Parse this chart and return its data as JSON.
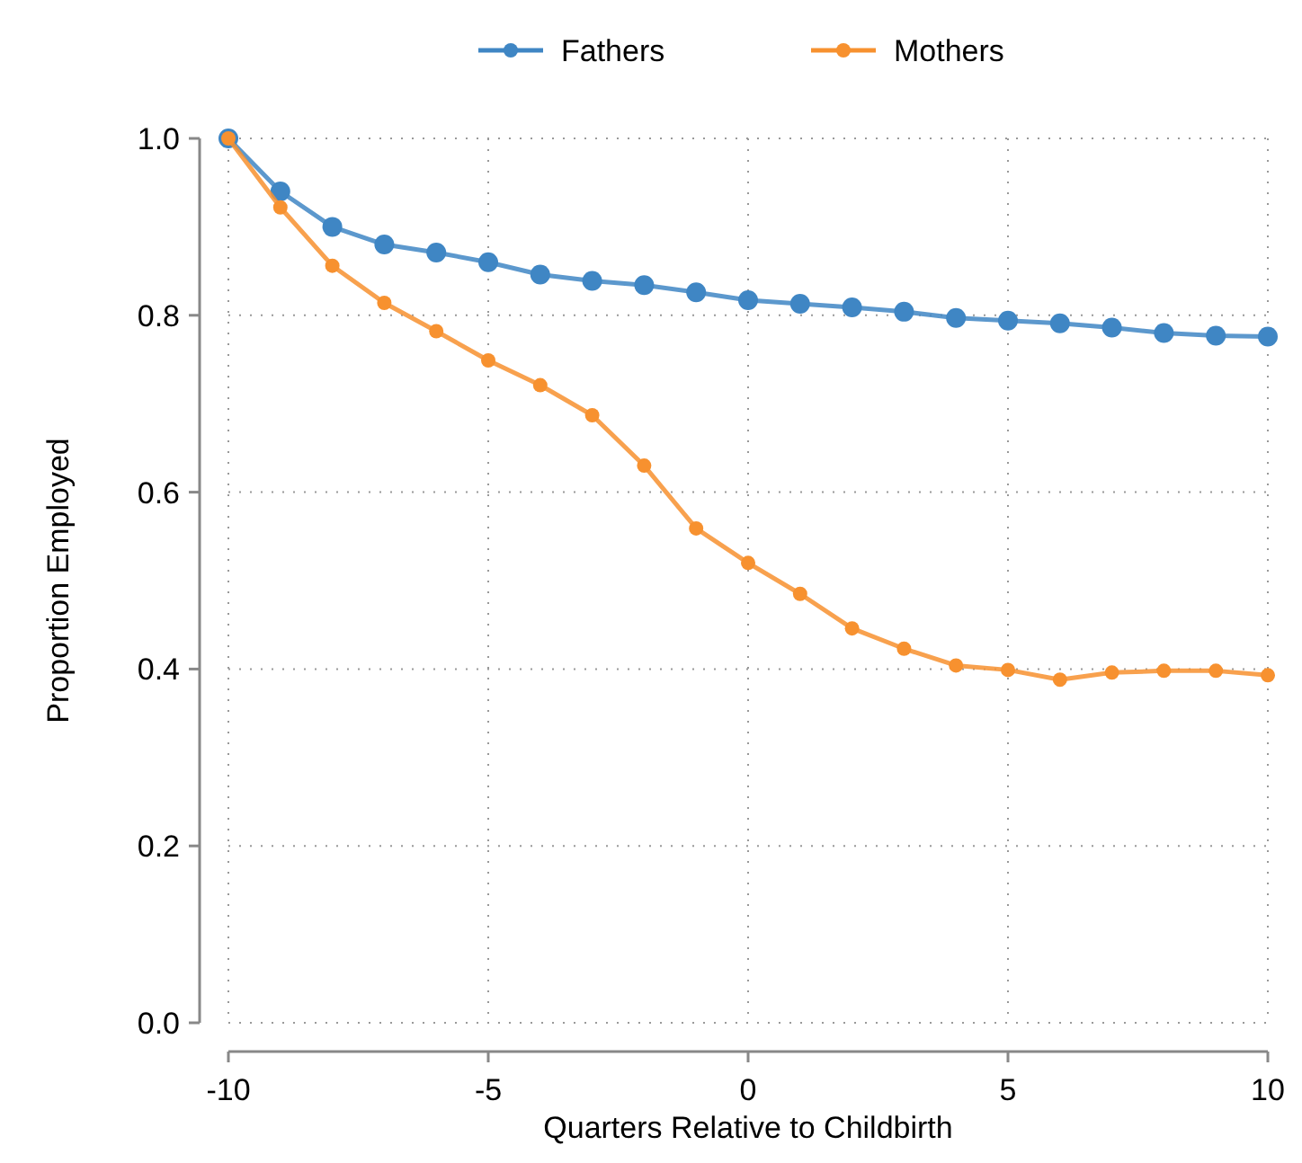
{
  "chart_data": {
    "type": "line",
    "xlabel": "Quarters Relative to Childbirth",
    "ylabel": "Proportion Employed",
    "x": [
      -10,
      -9,
      -8,
      -7,
      -6,
      -5,
      -4,
      -3,
      -2,
      -1,
      0,
      1,
      2,
      3,
      4,
      5,
      6,
      7,
      8,
      9,
      10
    ],
    "series": [
      {
        "name": "Fathers",
        "color": "#3f86c4",
        "values": [
          1.0,
          0.94,
          0.9,
          0.88,
          0.871,
          0.86,
          0.846,
          0.839,
          0.834,
          0.826,
          0.817,
          0.813,
          0.809,
          0.804,
          0.797,
          0.794,
          0.791,
          0.786,
          0.78,
          0.777,
          0.776
        ]
      },
      {
        "name": "Mothers",
        "color": "#f7912f",
        "values": [
          1.0,
          0.922,
          0.856,
          0.814,
          0.782,
          0.749,
          0.721,
          0.687,
          0.63,
          0.559,
          0.52,
          0.485,
          0.446,
          0.423,
          0.404,
          0.399,
          0.388,
          0.396,
          0.398,
          0.398,
          0.393
        ]
      }
    ],
    "xlim": [
      -10,
      10
    ],
    "xticks": [
      -10,
      -5,
      0,
      5,
      10
    ],
    "ylim": [
      0,
      1
    ],
    "yticks": [
      {
        "value": 0,
        "label": "0.0"
      },
      0.2,
      0.4,
      0.6,
      0.8,
      {
        "value": 1,
        "label": "1.0"
      }
    ],
    "grid": true,
    "legend": "top",
    "marker": "circle",
    "line_style": "solid"
  }
}
